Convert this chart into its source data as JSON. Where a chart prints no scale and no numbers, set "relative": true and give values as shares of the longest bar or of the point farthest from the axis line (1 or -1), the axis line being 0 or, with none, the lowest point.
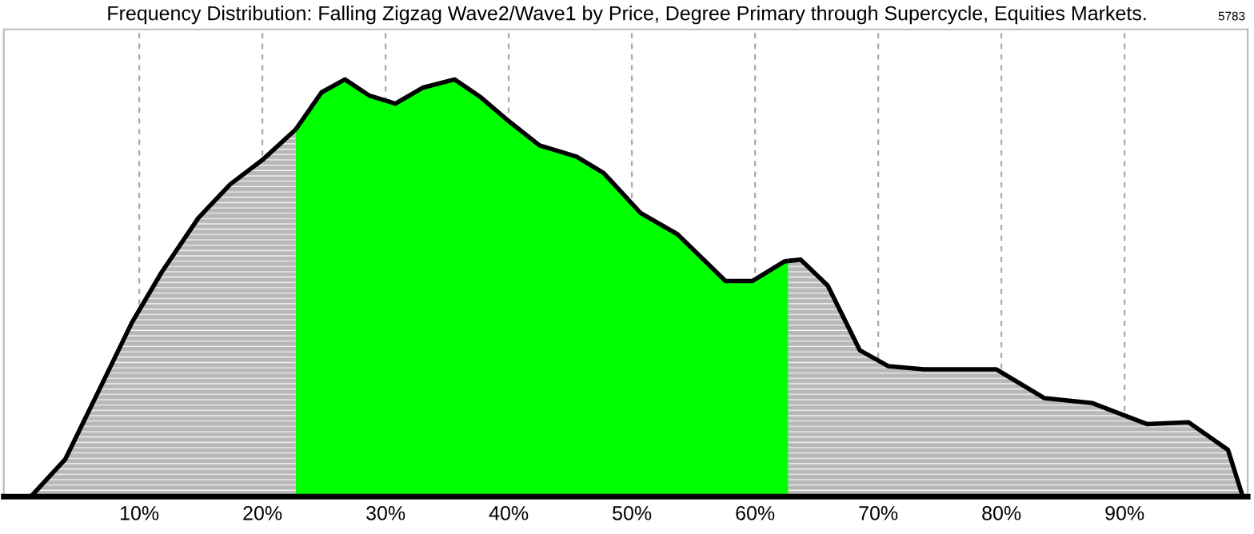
{
  "chart_data": {
    "type": "area",
    "title": "Frequency Distribution: Falling Zigzag Wave2/Wave1 by Price, Degree Primary through Supercycle, Equities Markets.",
    "relative": true,
    "series": [
      {
        "color": "#b8b8b8",
        "x": [
          1.2,
          4.0,
          6.4,
          9.4,
          11.8,
          14.8,
          17.4,
          20,
          22.7
        ],
        "values": [
          0,
          0.09,
          0.235,
          0.417,
          0.537,
          0.668,
          0.749,
          0.807,
          0.88
        ]
      },
      {
        "color": "#00ff00",
        "x": [
          22.7,
          24.8,
          26.7,
          28.7,
          30.8,
          33,
          35.6,
          37.7,
          40,
          42.5,
          45.5,
          47.7,
          50.7,
          53.7,
          57.6,
          59.8,
          62.4,
          62.7
        ],
        "values": [
          0.88,
          0.969,
          1.0,
          0.961,
          0.942,
          0.98,
          1.0,
          0.958,
          0.9,
          0.842,
          0.815,
          0.776,
          0.68,
          0.629,
          0.517,
          0.517,
          0.564,
          0.565
        ]
      },
      {
        "color": "#b8b8b8",
        "x": [
          62.7,
          63.7,
          65.9,
          68.5,
          70.8,
          73.7,
          79.6,
          83.5,
          87.4,
          91.8,
          95.2,
          98.4,
          99.6
        ],
        "values": [
          0.565,
          0.568,
          0.506,
          0.351,
          0.313,
          0.305,
          0.305,
          0.236,
          0.224,
          0.174,
          0.178,
          0.112,
          0
        ]
      }
    ],
    "xlim": [
      -1,
      100
    ],
    "xticks": [
      {
        "value": 10,
        "label": "10%"
      },
      {
        "value": 20,
        "label": "20%"
      },
      {
        "value": 30,
        "label": "30%"
      },
      {
        "value": 40,
        "label": "40%"
      },
      {
        "value": 50,
        "label": "50%"
      },
      {
        "value": 60,
        "label": "60%"
      },
      {
        "value": 70,
        "label": "70%"
      },
      {
        "value": 80,
        "label": "80%"
      },
      {
        "value": 90,
        "label": "90%"
      }
    ],
    "grid": "x",
    "annotations": [
      "5783"
    ]
  }
}
